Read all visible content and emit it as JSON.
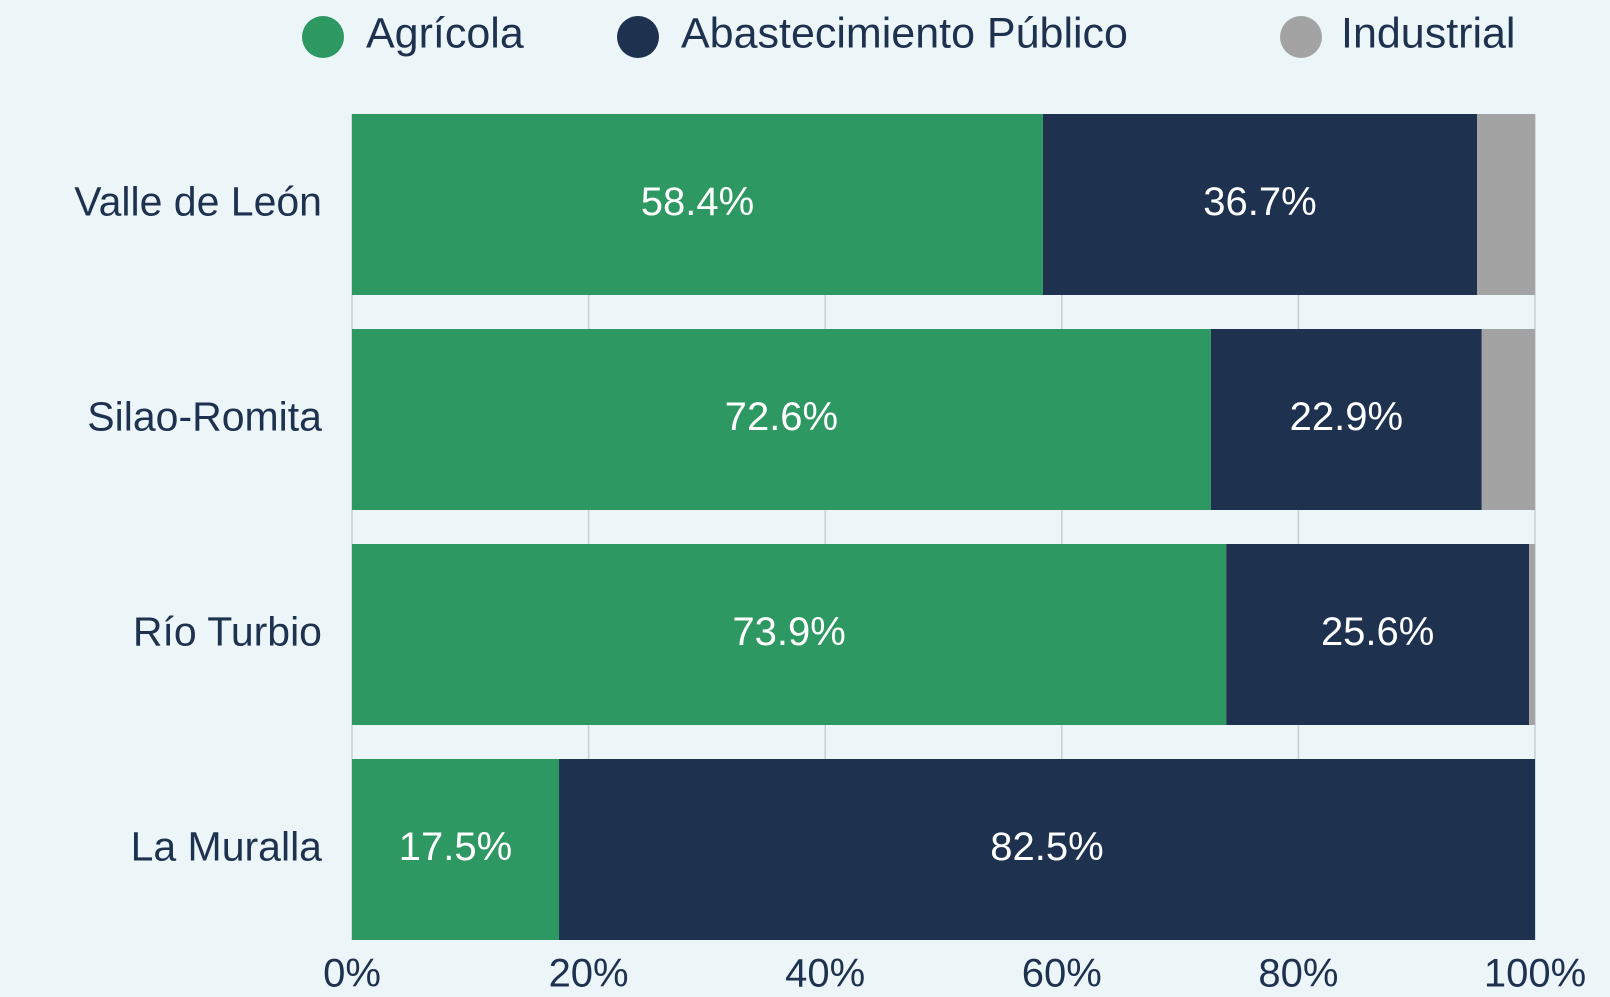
{
  "chart_data": {
    "type": "stacked-bar-horizontal",
    "categories": [
      "Valle de León",
      "Silao-Romita",
      "Río Turbio",
      "La Muralla"
    ],
    "series": [
      {
        "name": "Agrícola",
        "color": "#2e9862",
        "values": [
          58.4,
          72.6,
          73.9,
          17.5
        ],
        "value_labels": [
          "58.4%",
          "72.6%",
          "73.9%",
          "17.5%"
        ]
      },
      {
        "name": "Abastecimiento Público",
        "color": "#1e3250",
        "values": [
          36.7,
          22.9,
          25.6,
          82.5
        ],
        "value_labels": [
          "36.7%",
          "22.9%",
          "25.6%",
          "82.5%"
        ]
      },
      {
        "name": "Industrial",
        "color": "#a3a3a3",
        "values": [
          4.9,
          4.5,
          0.5,
          0
        ]
      }
    ],
    "xlim": [
      0,
      100
    ],
    "xticks": [
      {
        "value": 0,
        "label": "0%"
      },
      {
        "value": 20,
        "label": "20%"
      },
      {
        "value": 40,
        "label": "40%"
      },
      {
        "value": 60,
        "label": "60%"
      },
      {
        "value": 80,
        "label": "80%"
      },
      {
        "value": 100,
        "label": "100%"
      }
    ],
    "grid": true,
    "legend": "top"
  }
}
